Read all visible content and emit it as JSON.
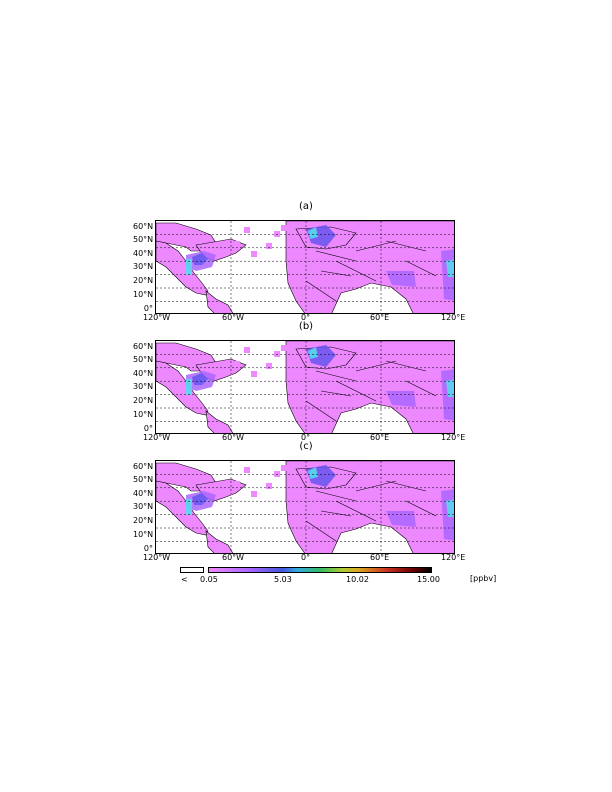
{
  "panels": [
    {
      "label": "(a)"
    },
    {
      "label": "(b)"
    },
    {
      "label": "(c)"
    }
  ],
  "lat_ticks": [
    "60°N",
    "50°N",
    "40°N",
    "30°N",
    "20°N",
    "10°N",
    "0°"
  ],
  "lon_ticks": [
    "120°W",
    "60°W",
    "0°",
    "60°E",
    "120°E"
  ],
  "colorbar": {
    "under_label": "<",
    "ticks": [
      "0.05",
      "5.03",
      "10.02",
      "15.00"
    ],
    "unit": "[ppbv]",
    "range": [
      0.05,
      15.0
    ]
  },
  "colors": {
    "low": "#ee88ff",
    "mid_low": "#aa66ff",
    "mid": "#6655ee",
    "high": "#55ddee",
    "ocean": "#ffffff"
  }
}
